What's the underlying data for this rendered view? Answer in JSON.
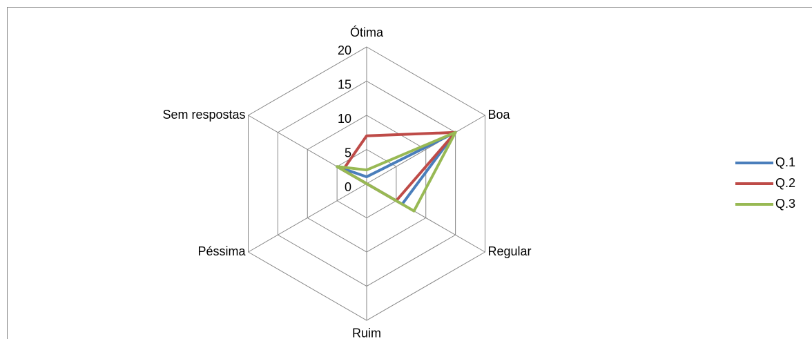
{
  "chart_data": {
    "type": "radar",
    "categories": [
      "Ótima",
      "Boa",
      "Regular",
      "Ruim",
      "Péssima",
      "Sem respostas"
    ],
    "series": [
      {
        "name": "Q.1",
        "color": "#4a7ebb",
        "values": [
          1,
          15,
          6,
          0,
          0,
          5
        ]
      },
      {
        "name": "Q.2",
        "color": "#be4b48",
        "values": [
          7,
          15,
          5,
          0,
          0,
          4
        ]
      },
      {
        "name": "Q.3",
        "color": "#98b954",
        "values": [
          2,
          15,
          8,
          0,
          0,
          5
        ]
      }
    ],
    "rlim": [
      0,
      20
    ],
    "rticks": [
      0,
      5,
      10,
      15,
      20
    ],
    "grid": true,
    "legend": "right"
  }
}
